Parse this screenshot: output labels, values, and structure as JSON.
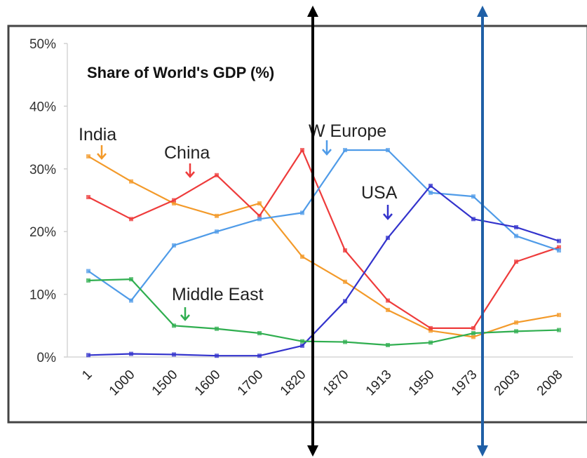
{
  "chart_data": {
    "type": "line",
    "title": "Share of World's GDP (%)",
    "xlabel": "",
    "ylabel": "",
    "categories": [
      "1",
      "1000",
      "1500",
      "1600",
      "1700",
      "1820",
      "1870",
      "1913",
      "1950",
      "1973",
      "2003",
      "2008"
    ],
    "y_tick_labels": [
      "0%",
      "10%",
      "20%",
      "30%",
      "40%",
      "50%"
    ],
    "ylim": [
      0,
      50
    ],
    "grid": false,
    "legend": "none",
    "series": [
      {
        "name": "India",
        "color": "#f39a2a",
        "values": [
          32,
          28,
          24.5,
          22.5,
          24.5,
          16,
          12,
          7.5,
          4.2,
          3.2,
          5.5,
          6.7
        ]
      },
      {
        "name": "China",
        "color": "#ee3b3b",
        "values": [
          25.5,
          22,
          25,
          29,
          22.5,
          33,
          17,
          9,
          4.6,
          4.6,
          15.2,
          17.5
        ]
      },
      {
        "name": "W Europe",
        "color": "#4f9be8",
        "values": [
          13.7,
          9,
          17.8,
          20,
          22,
          23,
          33,
          33,
          26.2,
          25.6,
          19.3,
          17
        ]
      },
      {
        "name": "USA",
        "color": "#3333cc",
        "values": [
          0.3,
          0.5,
          0.4,
          0.2,
          0.2,
          1.8,
          8.9,
          19,
          27.3,
          22,
          20.7,
          18.5
        ]
      },
      {
        "name": "Middle East",
        "color": "#2fae4f",
        "values": [
          12.2,
          12.4,
          5,
          4.5,
          3.8,
          2.5,
          2.4,
          1.9,
          2.3,
          3.8,
          4.1,
          4.3
        ]
      }
    ],
    "vertical_markers": [
      {
        "color": "#000000"
      },
      {
        "color": "#1f5fa6"
      }
    ]
  }
}
